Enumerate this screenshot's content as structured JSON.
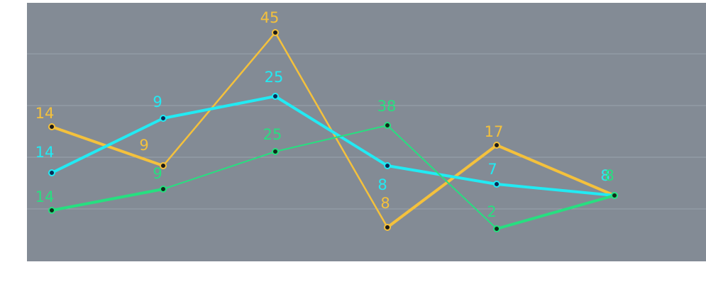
{
  "chart_data": {
    "type": "line",
    "title": "",
    "xlabel": "",
    "ylabel": "",
    "grid": true,
    "plot_bg": "#838b95",
    "grid_color": "#9aa3ad",
    "x": [
      1,
      2,
      3,
      4,
      5,
      6
    ],
    "ylim": [
      -10,
      50
    ],
    "series": [
      {
        "color": "#f4c13c",
        "marker_fill": "#1a1a1a",
        "values": [
          14,
          9,
          45,
          8,
          17,
          8
        ],
        "labels": [
          "14",
          "9",
          "45",
          "8",
          "17",
          "8"
        ]
      },
      {
        "color": "#22eaf3",
        "marker_fill": "#0b2a55",
        "values": [
          14,
          9,
          25,
          8,
          7,
          8
        ],
        "labels": [
          "14",
          "9",
          "25",
          "8",
          "7",
          "8"
        ]
      },
      {
        "color": "#27df80",
        "marker_fill": "#0f2a1a",
        "values": [
          14,
          9,
          25,
          38,
          2,
          8
        ],
        "labels": [
          "14",
          "9",
          "25",
          "38",
          "2",
          "8"
        ]
      }
    ]
  }
}
